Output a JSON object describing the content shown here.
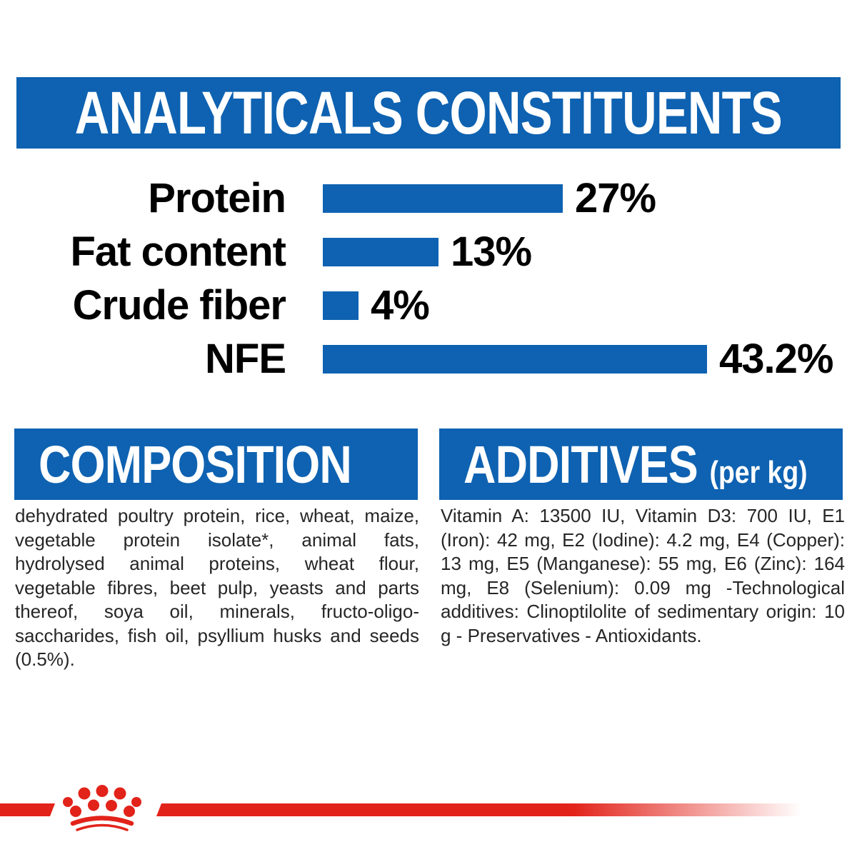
{
  "colors": {
    "blue": "#0E62B1",
    "red": "#E2231A",
    "text": "#262626",
    "background": "#FFFFFF"
  },
  "header": {
    "title": "ANALYTICALS CONSTITUENTS"
  },
  "chart_data": {
    "type": "bar",
    "orientation": "horizontal",
    "title": "ANALYTICALS CONSTITUENTS",
    "categories": [
      "Protein",
      "Fat content",
      "Crude fiber",
      "NFE"
    ],
    "values": [
      27,
      13,
      4,
      43.2
    ],
    "value_labels": [
      "27%",
      "13%",
      "4%",
      "43.2%"
    ],
    "xlim": [
      0,
      43.2
    ],
    "bar_color": "#0E62B1",
    "grid": false,
    "legend": false
  },
  "composition": {
    "title": "COMPOSITION",
    "body": "dehydrated poultry protein, rice, wheat, maize, vegetable protein isolate*, animal fats, hydrolysed animal proteins, wheat flour, vegetable fibres, beet pulp, yeasts and parts thereof, soya oil, minerals, fructo-oligo-saccharides, fish oil, psyllium husks and seeds (0.5%)."
  },
  "additives": {
    "title": "ADDITIVES",
    "unit": "(per kg)",
    "body": "Vitamin A: 13500 IU, Vitamin D3: 700 IU, E1 (Iron): 42 mg, E2 (Iodine): 4.2 mg, E4 (Copper): 13 mg, E5 (Manganese): 55 mg, E6 (Zinc): 164 mg, E8 (Selenium): 0.09 mg -Technological additives: Clinoptilolite of sedimentary origin: 10 g - Preservatives - Antioxidants."
  },
  "footer": {
    "logo_icon": "royal-canin-crown-icon"
  }
}
